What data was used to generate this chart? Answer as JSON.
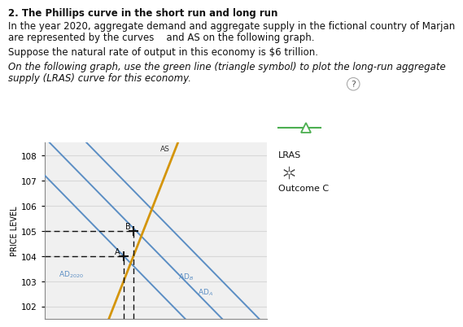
{
  "title": "2. The Phillips curve in the short run and long run",
  "para1a": "In the year 2020, aggregate demand and aggregate supply in the fictional country of Marjan",
  "para1b": "are represented by the curves    and AS on the following graph.",
  "para2": "Suppose the natural rate of output in this economy is $6 trillion.",
  "para3a": "On the following graph, use the green line (triangle symbol) to plot the long-run aggregate",
  "para3b": "supply (LRAS) curve for this economy.",
  "ylabel": "PRICE LEVEL",
  "ylim": [
    101.5,
    108.5
  ],
  "xlim": [
    0,
    9
  ],
  "yticks": [
    102,
    103,
    104,
    105,
    106,
    107,
    108
  ],
  "bg_color": "#ffffff",
  "plot_bg_color": "#f0f0f0",
  "grid_color": "#d8d8d8",
  "ad_color": "#5b8ec4",
  "as_color": "#d4950a",
  "lras_color": "#4caf50",
  "dash_color": "#111111",
  "text_color": "#111111",
  "xA": 3.2,
  "yA": 104,
  "xB": 3.6,
  "yB": 105,
  "ad2020_intercept": 107.2,
  "adA_intercept": 110.2,
  "adB_intercept": 108.7,
  "as_slope": 2.5,
  "as_intercept": 95.0
}
